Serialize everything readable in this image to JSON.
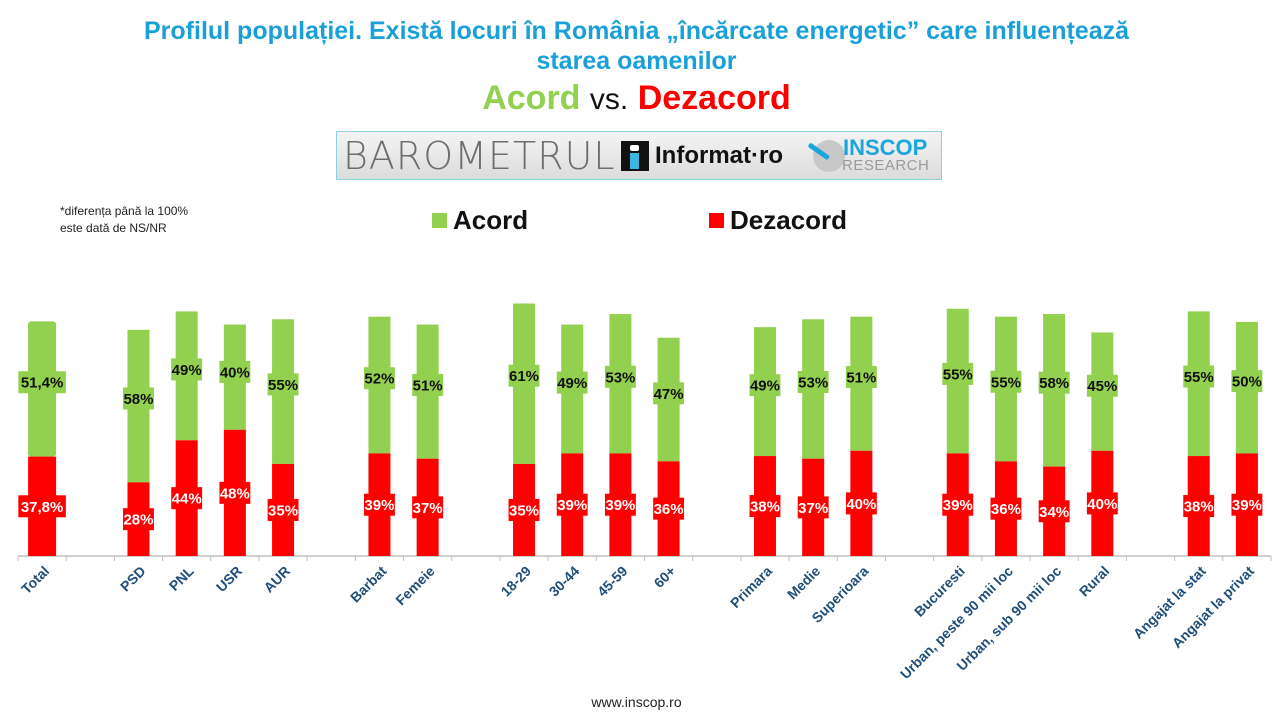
{
  "header": {
    "title_line1": "Profilul populației. Există locuri în România „încărcate energetic” care influențează",
    "title_line2": "starea oamenilor",
    "subtitle_acord": "Acord",
    "subtitle_vs": "vs.",
    "subtitle_dezacord": "Dezacord"
  },
  "banner": {
    "barometru": "BAROMETRUL",
    "informat": "Informat·ro",
    "inscop": "INSCOP",
    "research": "RESEARCH"
  },
  "note": {
    "line1": "*diferența până la 100%",
    "line2": "este dată de NS/NR"
  },
  "footer": {
    "url": "www.inscop.ro"
  },
  "colors": {
    "acord": "#92d050",
    "dezacord": "#ff0000",
    "title": "#1aa0d8",
    "category_label": "#1f4e79"
  },
  "chart_data": {
    "type": "bar",
    "stacked": true,
    "title": "Profilul populației. Există locuri în România „încărcate energetic” care influențează starea oamenilor",
    "xlabel": "",
    "ylabel": "",
    "ylim": [
      0,
      100
    ],
    "grid": false,
    "legend": {
      "position": "top-center",
      "entries": [
        "Acord",
        "Dezacord"
      ]
    },
    "categories": [
      "Total",
      "",
      "PSD",
      "PNL",
      "USR",
      "AUR",
      "",
      "Barbat",
      "Femeie",
      "",
      "18-29",
      "30-44",
      "45-59",
      "60+",
      "",
      "Primara",
      "Medie",
      "Superioara",
      "",
      "Bucuresti",
      "Urban, peste 90 mii loc",
      "Urban, sub 90 mii loc",
      "Rural",
      "",
      "Angajat la stat",
      "Angajat la privat"
    ],
    "series": [
      {
        "name": "Dezacord",
        "color": "#ff0000",
        "values": [
          37.8,
          null,
          28,
          44,
          48,
          35,
          null,
          39,
          37,
          null,
          35,
          39,
          39,
          36,
          null,
          38,
          37,
          40,
          null,
          39,
          36,
          34,
          40,
          null,
          38,
          39
        ],
        "labels": [
          "37,8%",
          "",
          "28%",
          "44%",
          "48%",
          "35%",
          "",
          "39%",
          "37%",
          "",
          "35%",
          "39%",
          "39%",
          "36%",
          "",
          "38%",
          "37%",
          "40%",
          "",
          "39%",
          "36%",
          "34%",
          "40%",
          "",
          "38%",
          "39%"
        ]
      },
      {
        "name": "Acord",
        "color": "#92d050",
        "values": [
          51.4,
          null,
          58,
          49,
          40,
          55,
          null,
          52,
          51,
          null,
          61,
          49,
          53,
          47,
          null,
          49,
          53,
          51,
          null,
          55,
          55,
          58,
          45,
          null,
          55,
          50
        ],
        "labels": [
          "51,4%",
          "",
          "58%",
          "49%",
          "40%",
          "55%",
          "",
          "52%",
          "51%",
          "",
          "61%",
          "49%",
          "53%",
          "47%",
          "",
          "49%",
          "53%",
          "51%",
          "",
          "55%",
          "55%",
          "58%",
          "45%",
          "",
          "55%",
          "50%"
        ]
      }
    ]
  }
}
